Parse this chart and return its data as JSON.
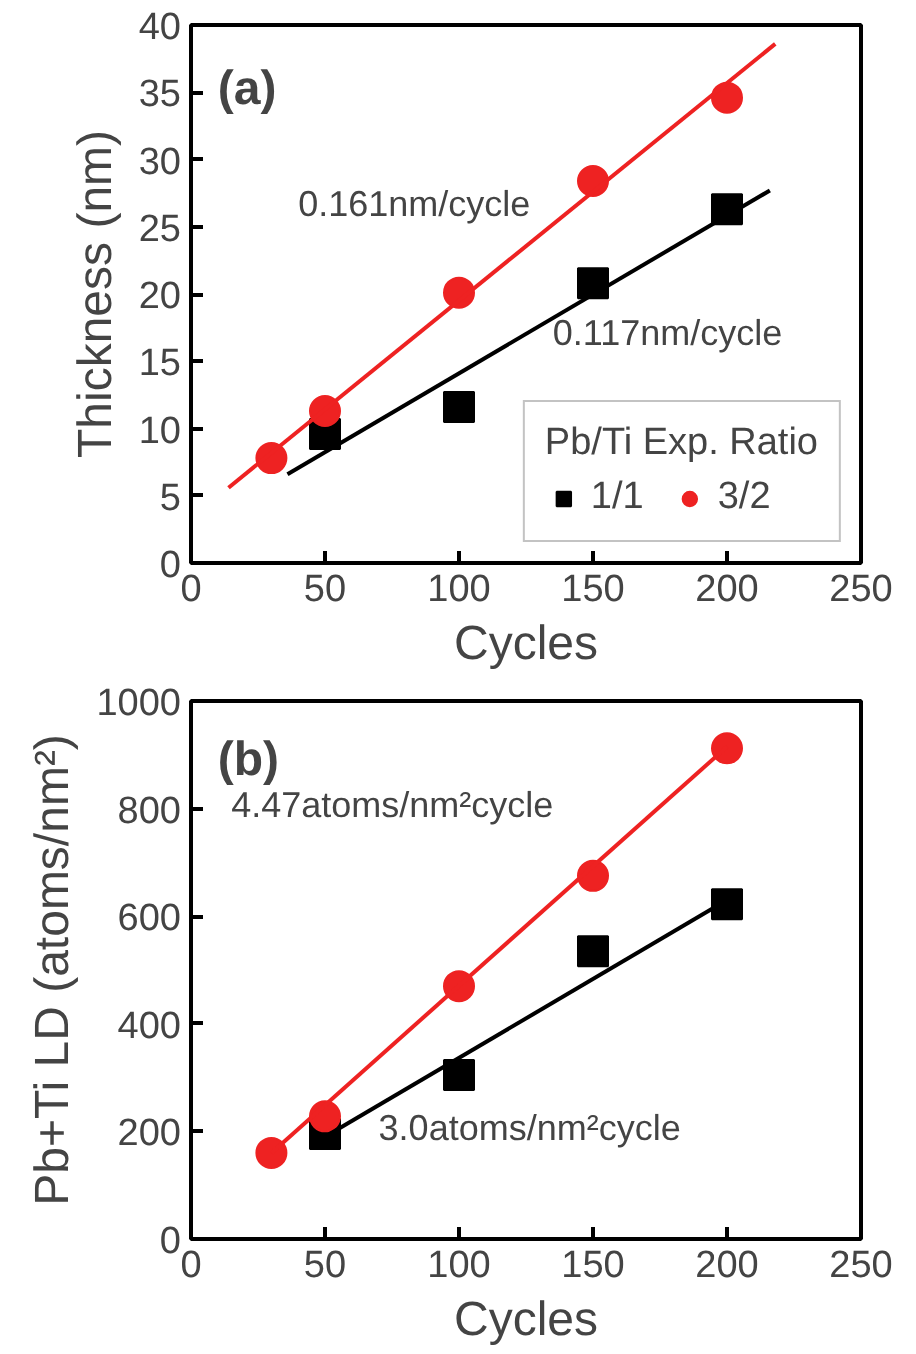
{
  "chart_data": [
    {
      "type": "scatter",
      "xlabel": "Cycles",
      "ylabel": "Thickness (nm)",
      "xlim": [
        0,
        250
      ],
      "ylim": [
        0,
        40
      ],
      "xticks": [
        0,
        50,
        100,
        150,
        200,
        250
      ],
      "yticks": [
        0,
        5,
        10,
        15,
        20,
        25,
        30,
        35,
        40
      ],
      "grid": false,
      "legend": "bottom right",
      "legend_title": "Pb/Ti Exp. Ratio",
      "series": [
        {
          "name": "1/1",
          "color": "#000000",
          "marker": "square",
          "x": [
            50,
            100,
            150,
            200
          ],
          "values": [
            9.6,
            11.6,
            20.8,
            26.3
          ]
        },
        {
          "name": "3/2",
          "color": "#ee2222",
          "marker": "circle",
          "x": [
            30,
            50,
            100,
            150,
            200
          ],
          "values": [
            7.8,
            11.3,
            20.1,
            28.4,
            34.6
          ]
        },
        {
          "type": "line",
          "color": "#ee2222",
          "x": [
            14,
            218
          ],
          "values": [
            5.6,
            38.6
          ]
        },
        {
          "type": "line",
          "color": "#000000",
          "x": [
            36,
            216
          ],
          "values": [
            6.6,
            27.7
          ]
        }
      ],
      "annotations": [
        "(a)",
        "0.161nm/cycle",
        "0.117nm/cycle"
      ]
    },
    {
      "type": "scatter",
      "xlabel": "Cycles",
      "ylabel": "Pb+Ti LD (atoms/nm²)",
      "xlim": [
        0,
        250
      ],
      "ylim": [
        0,
        1000
      ],
      "xticks": [
        0,
        50,
        100,
        150,
        200,
        250
      ],
      "yticks": [
        0,
        200,
        400,
        600,
        800,
        1000
      ],
      "grid": false,
      "series": [
        {
          "color": "#000000",
          "marker": "square",
          "x": [
            50,
            100,
            150,
            200
          ],
          "values": [
            195,
            305,
            535,
            622
          ]
        },
        {
          "color": "#ee2222",
          "marker": "circle",
          "x": [
            30,
            50,
            100,
            150,
            200
          ],
          "values": [
            160,
            228,
            470,
            675,
            912
          ]
        },
        {
          "type": "line",
          "color": "#ee2222",
          "x": [
            30,
            200
          ],
          "values": [
            160,
            915
          ]
        },
        {
          "type": "line",
          "color": "#000000",
          "x": [
            50,
            200
          ],
          "values": [
            190,
            630
          ]
        }
      ],
      "annotations": [
        "(b)",
        "4.47atoms/nm²cycle",
        "3.0atoms/nm²cycle"
      ]
    }
  ]
}
